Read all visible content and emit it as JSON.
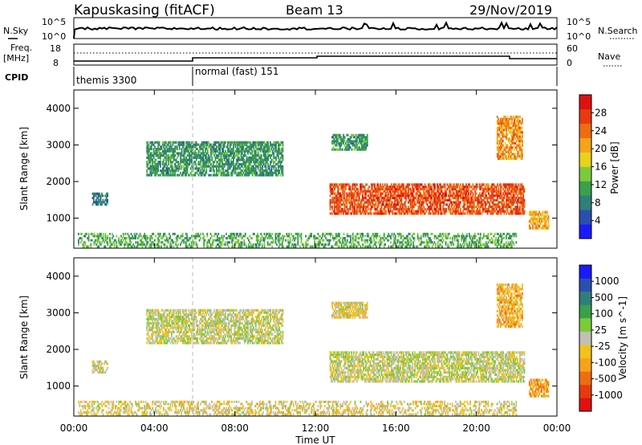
{
  "header": {
    "station": "Kapuskasing (fitACF)",
    "beam": "Beam 13",
    "date": "29/Nov/2019"
  },
  "aux_panels": {
    "nsky_label": "N.Sky",
    "nsky_ticks": [
      "10^5",
      "10^0"
    ],
    "nsearch_label": "N.Search",
    "freq_label_1": "Freq.",
    "freq_label_2": "[MHz]",
    "freq_ticks": [
      "18",
      "8"
    ],
    "nave_label": "Nave",
    "nave_ticks": [
      "60",
      "0"
    ],
    "cpid_label": "CPID",
    "cpid_1": "themis 3300",
    "cpid_2": "normal (fast) 151"
  },
  "axes": {
    "ylabel": "Slant Range [km]",
    "xlabel": "Time UT",
    "yticks": [
      "1000",
      "2000",
      "3000",
      "4000"
    ],
    "xticks": [
      "00:00",
      "04:00",
      "08:00",
      "12:00",
      "16:00",
      "20:00",
      "00:00"
    ]
  },
  "power_scale": {
    "label": "Power [dB]",
    "ticks": [
      "4",
      "8",
      "12",
      "16",
      "20",
      "24",
      "28"
    ],
    "colors": [
      "#1a1aff",
      "#2b4fb0",
      "#2f7f7a",
      "#3aa04a",
      "#7ccb3b",
      "#e8d21a",
      "#f5a31a",
      "#ef6d12",
      "#e83a10",
      "#e01010"
    ]
  },
  "velocity_scale": {
    "label": "Velocity [m s^-1]",
    "ticks": [
      "1000",
      "500",
      "100",
      "25",
      "-25",
      "-100",
      "-500",
      "-1000"
    ],
    "colors": [
      "#1a1aff",
      "#2b4fb0",
      "#2f7f7a",
      "#3aa04a",
      "#7ccb3b",
      "#c0c0b8",
      "#f2c21a",
      "#f5a31a",
      "#ef6d12",
      "#e83a10",
      "#e01010"
    ]
  },
  "chart_data": [
    {
      "type": "heatmap",
      "title": "Power",
      "xlabel": "Time UT",
      "ylabel": "Slant Range [km]",
      "xlim": [
        0,
        24
      ],
      "ylim": [
        180,
        4500
      ],
      "colorbar": {
        "label": "Power [dB]",
        "range": [
          0,
          32
        ]
      },
      "regions": [
        {
          "t": [
            3.6,
            10.4
          ],
          "r": [
            2150,
            3100
          ],
          "value": 10
        },
        {
          "t": [
            0.9,
            1.7
          ],
          "r": [
            1350,
            1700
          ],
          "value": 8
        },
        {
          "t": [
            12.7,
            22.4
          ],
          "r": [
            1100,
            1950
          ],
          "value": 26
        },
        {
          "t": [
            12.8,
            14.6
          ],
          "r": [
            2850,
            3300
          ],
          "value": 10
        },
        {
          "t": [
            21.0,
            22.3
          ],
          "r": [
            2600,
            3800
          ],
          "value": 22
        },
        {
          "t": [
            22.6,
            23.6
          ],
          "r": [
            700,
            1200
          ],
          "value": 20
        },
        {
          "t": [
            0.2,
            22.0
          ],
          "r": [
            200,
            600
          ],
          "value": 12
        }
      ]
    },
    {
      "type": "heatmap",
      "title": "Velocity",
      "xlabel": "Time UT",
      "ylabel": "Slant Range [km]",
      "xlim": [
        0,
        24
      ],
      "ylim": [
        180,
        4500
      ],
      "colorbar": {
        "label": "Velocity [m s^-1]",
        "range": [
          -1000,
          1000
        ]
      },
      "regions": [
        {
          "t": [
            3.6,
            10.4
          ],
          "r": [
            2150,
            3100
          ],
          "value": 0
        },
        {
          "t": [
            0.9,
            1.7
          ],
          "r": [
            1350,
            1700
          ],
          "value": -100
        },
        {
          "t": [
            12.7,
            22.4
          ],
          "r": [
            1100,
            1950
          ],
          "value": 0
        },
        {
          "t": [
            12.8,
            14.6
          ],
          "r": [
            2850,
            3300
          ],
          "value": -100
        },
        {
          "t": [
            21.0,
            22.3
          ],
          "r": [
            2600,
            3800
          ],
          "value": -300
        },
        {
          "t": [
            22.6,
            23.6
          ],
          "r": [
            700,
            1200
          ],
          "value": -400
        },
        {
          "t": [
            0.2,
            22.0
          ],
          "r": [
            200,
            600
          ],
          "value": -100
        }
      ]
    }
  ]
}
